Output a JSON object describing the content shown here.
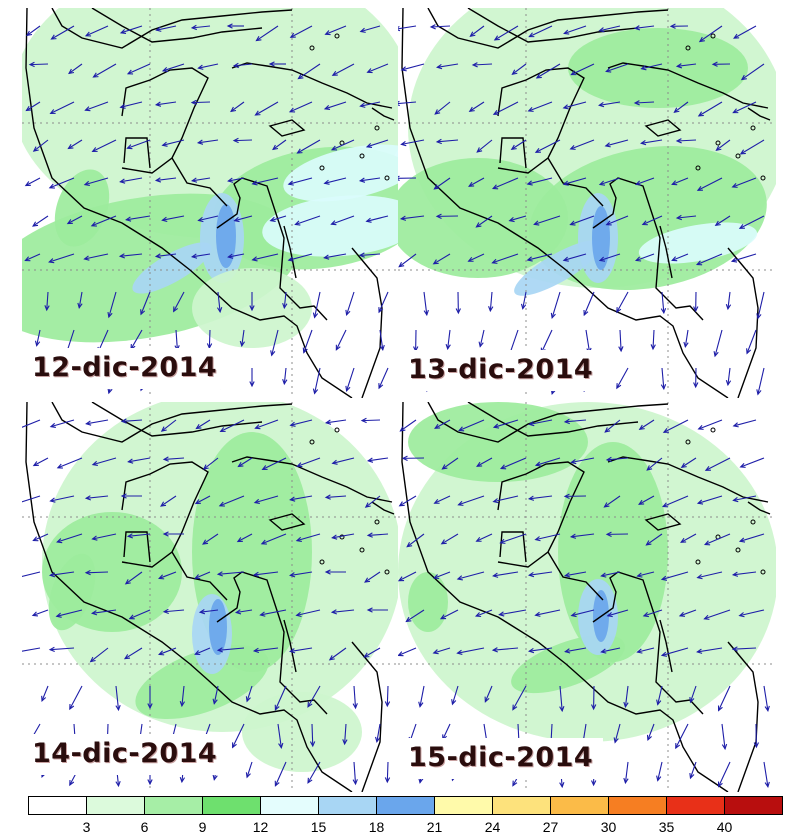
{
  "panels": [
    {
      "date": "12-dic-2014"
    },
    {
      "date": "13-dic-2014"
    },
    {
      "date": "14-dic-2014"
    },
    {
      "date": "15-dic-2014"
    }
  ],
  "legend": {
    "ticks": [
      "3",
      "6",
      "9",
      "12",
      "15",
      "18",
      "21",
      "24",
      "27",
      "30",
      "35",
      "40"
    ],
    "colors": [
      "#ffffff",
      "#dcfadc",
      "#a6eea6",
      "#6ee06e",
      "#e4fdfd",
      "#a8d6f4",
      "#6aa6ec",
      "#fffaaa",
      "#fde27c",
      "#fbbb48",
      "#f67e22",
      "#e83018",
      "#b80e0e"
    ]
  },
  "colors": {
    "land_outline": "#000000",
    "arrow": "#1e1ea8",
    "light_green": "#cdf5cd",
    "medium_green": "#9ceb9c",
    "bright_green": "#6ee06e",
    "light_cyan": "#dafcfc",
    "light_blue": "#a8d6f4",
    "blue": "#6aa6ec",
    "grid": "#8c8c8c"
  }
}
